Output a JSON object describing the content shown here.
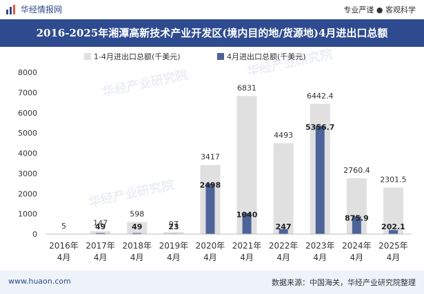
{
  "header": {
    "brand": "华经情报网",
    "slogan": "专业严谨 ● 客观科学"
  },
  "title": "2016-2025年湘潭高新技术产业开发区(境内目的地/货源地)4月进出口总额",
  "footer": {
    "site": "www.huaon.com",
    "source": "数据来源：中国海关，华经产业研究院整理"
  },
  "watermark": "华经产业研究院",
  "colors": {
    "titlebar": "#2d4b8e",
    "series1": "#e0e0e0",
    "series2": "#4d6399"
  },
  "chart_data": {
    "type": "bar",
    "categories": [
      "2016年\n4月",
      "2017年\n4月",
      "2018年\n4月",
      "2019年\n4月",
      "2020年\n4月",
      "2021年\n4月",
      "2022年\n4月",
      "2023年\n4月",
      "2024年\n4月",
      "2025年\n4月"
    ],
    "series": [
      {
        "name": "1-4月进出口总额(千美元)",
        "values": [
          5,
          147,
          598,
          97,
          3417,
          6831,
          4493,
          6442.4,
          2760.4,
          2301.5
        ],
        "labels": [
          "5",
          "147",
          "598",
          "97",
          "3417",
          "6831",
          "4493",
          "6442.4",
          "2760.4",
          "2301.5"
        ]
      },
      {
        "name": "4月进出口总额(千美元)",
        "values": [
          1,
          49,
          49,
          23,
          2498,
          1040,
          247,
          5356.7,
          875.9,
          202.1
        ],
        "labels": [
          "",
          "49",
          "49",
          "23",
          "2498",
          "1040",
          "247",
          "5356.7",
          "875.9",
          "202.1"
        ]
      }
    ],
    "ylim": [
      0,
      8000
    ],
    "yticks": [
      0,
      1000,
      2000,
      3000,
      4000,
      5000,
      6000,
      7000,
      8000
    ],
    "legend": "top-center",
    "grid": false
  }
}
